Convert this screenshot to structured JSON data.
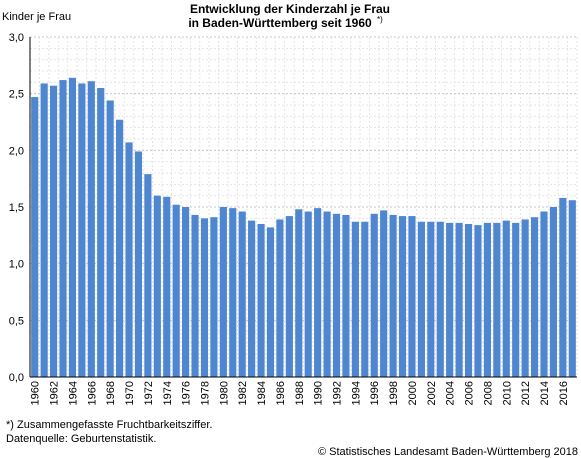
{
  "chart_data": {
    "type": "bar",
    "title_lines": [
      "Entwicklung der Kinderzahl je Frau",
      "in Baden-Württemberg seit 1960"
    ],
    "title_note": "*)",
    "y_label": "Kinder je Frau",
    "categories": [
      "1960",
      null,
      "1962",
      null,
      "1964",
      null,
      "1966",
      null,
      "1968",
      null,
      "1970",
      null,
      "1972",
      null,
      "1974",
      null,
      "1976",
      null,
      "1978",
      null,
      "1980",
      null,
      "1982",
      null,
      "1984",
      null,
      "1986",
      null,
      "1988",
      null,
      "1990",
      null,
      "1992",
      null,
      "1994",
      null,
      "1996",
      null,
      "1998",
      null,
      "2000",
      null,
      "2002",
      null,
      "2004",
      null,
      "2006",
      null,
      "2008",
      null,
      "2010",
      null,
      "2012",
      null,
      "2014",
      null,
      "2016",
      null
    ],
    "values": [
      2.47,
      2.59,
      2.57,
      2.62,
      2.64,
      2.59,
      2.61,
      2.55,
      2.44,
      2.27,
      2.07,
      1.99,
      1.79,
      1.6,
      1.59,
      1.52,
      1.5,
      1.43,
      1.4,
      1.41,
      1.5,
      1.49,
      1.46,
      1.38,
      1.35,
      1.32,
      1.39,
      1.42,
      1.48,
      1.46,
      1.49,
      1.46,
      1.44,
      1.43,
      1.37,
      1.37,
      1.44,
      1.47,
      1.43,
      1.42,
      1.42,
      1.37,
      1.37,
      1.37,
      1.36,
      1.36,
      1.35,
      1.34,
      1.36,
      1.36,
      1.38,
      1.36,
      1.39,
      1.41,
      1.46,
      1.5,
      1.58,
      1.56
    ],
    "color": "#4f86d0",
    "ylim": [
      0,
      3
    ],
    "yticks": [
      {
        "value": 0,
        "label": "0,0"
      },
      {
        "value": 0.5,
        "label": "0,5"
      },
      {
        "value": 1,
        "label": "1,0"
      },
      {
        "value": 1.5,
        "label": "1,5"
      },
      {
        "value": 2,
        "label": "2,0"
      },
      {
        "value": 2.5,
        "label": "2,5"
      },
      {
        "value": 3,
        "label": "3,0"
      }
    ],
    "grid": true,
    "footnotes": [
      "*) Zusammengefasste Fruchtbarkeitsziffer.",
      "Datenquelle: Geburtenstatistik."
    ],
    "source": "© Statistisches Landesamt Baden-Württemberg 2018"
  }
}
